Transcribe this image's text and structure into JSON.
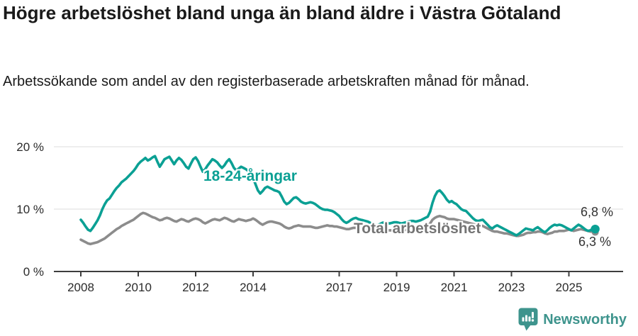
{
  "header": {
    "title": "Högre arbetslöshet bland unga än bland äldre i Västra Götaland",
    "subtitle": "Arbetssökande som andel av den registerbaserade arbetskraften månad för månad."
  },
  "chart_data": {
    "type": "line",
    "title": "Högre arbetslöshet bland unga än bland äldre i Västra Götaland",
    "subtitle": "Arbetssökande som andel av den registerbaserade arbetskraften månad för månad.",
    "unit": "%",
    "frequency": "monthly",
    "x_start_year": 2008,
    "x_start_month": 1,
    "x_end_year": 2025,
    "x_end_month": 12,
    "ylim": [
      0,
      22.5
    ],
    "grid": "horizontal-light",
    "legend_position": "inline-labels",
    "y_ticks": [
      {
        "value": 0,
        "label": "0 %"
      },
      {
        "value": 10,
        "label": "10 %"
      },
      {
        "value": 20,
        "label": "20 %"
      }
    ],
    "x_ticks": [
      {
        "year": 2008,
        "label": "2008"
      },
      {
        "year": 2010,
        "label": "2010"
      },
      {
        "year": 2012,
        "label": "2012"
      },
      {
        "year": 2014,
        "label": "2014"
      },
      {
        "year": 2017,
        "label": "2017"
      },
      {
        "year": 2019,
        "label": "2019"
      },
      {
        "year": 2021,
        "label": "2021"
      },
      {
        "year": 2023,
        "label": "2023"
      },
      {
        "year": 2025,
        "label": "2025"
      }
    ],
    "series": [
      {
        "name": "18-24-åringar",
        "color": "#0ba094",
        "end_label": "6,8 %",
        "end_value": 6.8,
        "values": [
          8.3,
          7.8,
          7.2,
          6.7,
          6.5,
          7.0,
          7.6,
          8.2,
          9.0,
          10.0,
          10.8,
          11.4,
          11.7,
          12.3,
          12.9,
          13.4,
          13.8,
          14.3,
          14.6,
          14.9,
          15.3,
          15.7,
          16.1,
          16.6,
          17.2,
          17.6,
          17.9,
          18.2,
          17.8,
          18.0,
          18.3,
          18.5,
          17.6,
          16.8,
          17.4,
          18.0,
          18.2,
          18.4,
          17.8,
          17.2,
          17.8,
          18.2,
          17.9,
          17.4,
          16.8,
          16.5,
          17.3,
          18.0,
          18.3,
          17.7,
          16.8,
          16.0,
          16.4,
          17.0,
          17.5,
          18.0,
          17.8,
          17.5,
          17.0,
          16.6,
          17.0,
          17.6,
          18.0,
          17.4,
          16.6,
          16.2,
          16.5,
          16.8,
          16.6,
          16.4,
          16.1,
          15.8,
          15.0,
          14.0,
          13.0,
          12.5,
          12.9,
          13.4,
          13.6,
          13.4,
          13.2,
          13.0,
          12.9,
          12.7,
          12.0,
          11.2,
          10.8,
          11.0,
          11.4,
          11.8,
          11.9,
          11.6,
          11.2,
          11.0,
          10.9,
          11.0,
          11.1,
          11.0,
          10.8,
          10.5,
          10.2,
          10.0,
          9.9,
          9.9,
          9.8,
          9.7,
          9.5,
          9.2,
          8.9,
          8.4,
          8.0,
          7.8,
          8.0,
          8.3,
          8.5,
          8.6,
          8.4,
          8.3,
          8.2,
          8.1,
          8.0,
          7.8,
          7.6,
          7.5,
          7.4,
          7.6,
          7.8,
          7.9,
          7.8,
          7.7,
          7.8,
          7.9,
          7.9,
          7.8,
          7.7,
          7.8,
          7.9,
          8.0,
          8.1,
          8.1,
          8.0,
          8.1,
          8.2,
          8.4,
          8.6,
          8.8,
          9.6,
          11.0,
          12.1,
          12.8,
          13.0,
          12.6,
          12.1,
          11.5,
          11.1,
          11.3,
          11.0,
          10.8,
          10.4,
          10.0,
          9.8,
          9.7,
          9.3,
          8.9,
          8.5,
          8.2,
          8.1,
          8.2,
          8.3,
          7.9,
          7.5,
          7.1,
          6.9,
          7.2,
          7.4,
          7.2,
          7.0,
          6.8,
          6.6,
          6.4,
          6.2,
          6.0,
          5.8,
          6.0,
          6.3,
          6.6,
          6.9,
          6.8,
          6.7,
          6.6,
          6.9,
          7.1,
          6.8,
          6.5,
          6.3,
          6.6,
          7.0,
          7.3,
          7.5,
          7.4,
          7.5,
          7.4,
          7.2,
          7.0,
          6.8,
          6.6,
          6.9,
          7.2,
          7.5,
          7.3,
          7.0,
          6.7,
          6.5,
          6.6,
          6.9,
          6.8
        ]
      },
      {
        "name": "Total arbetslöshet",
        "color": "#8c8c8c",
        "label_color": "#747474",
        "end_label": "6,3 %",
        "end_value": 6.3,
        "values": [
          5.1,
          4.9,
          4.7,
          4.5,
          4.4,
          4.5,
          4.6,
          4.7,
          4.9,
          5.1,
          5.3,
          5.6,
          5.9,
          6.2,
          6.5,
          6.8,
          7.0,
          7.3,
          7.5,
          7.7,
          7.9,
          8.1,
          8.3,
          8.6,
          8.9,
          9.2,
          9.4,
          9.3,
          9.1,
          8.9,
          8.7,
          8.6,
          8.4,
          8.2,
          8.3,
          8.5,
          8.6,
          8.5,
          8.3,
          8.1,
          8.0,
          8.2,
          8.4,
          8.3,
          8.1,
          8.0,
          8.2,
          8.4,
          8.5,
          8.4,
          8.2,
          7.9,
          7.7,
          7.9,
          8.1,
          8.3,
          8.4,
          8.3,
          8.2,
          8.4,
          8.6,
          8.5,
          8.3,
          8.1,
          8.0,
          8.2,
          8.4,
          8.3,
          8.2,
          8.1,
          8.2,
          8.3,
          8.5,
          8.3,
          8.0,
          7.7,
          7.5,
          7.7,
          7.9,
          8.0,
          8.0,
          7.9,
          7.8,
          7.7,
          7.5,
          7.2,
          7.0,
          6.9,
          7.0,
          7.2,
          7.3,
          7.4,
          7.3,
          7.2,
          7.2,
          7.2,
          7.2,
          7.1,
          7.0,
          7.0,
          7.1,
          7.2,
          7.3,
          7.4,
          7.3,
          7.3,
          7.2,
          7.2,
          7.1,
          7.0,
          6.9,
          6.8,
          6.8,
          6.9,
          7.0,
          7.0,
          6.9,
          6.9,
          6.8,
          6.8,
          6.8,
          6.7,
          6.6,
          6.5,
          6.5,
          6.6,
          6.7,
          6.7,
          6.6,
          6.6,
          6.6,
          6.7,
          6.7,
          6.7,
          6.6,
          6.6,
          6.7,
          6.8,
          6.9,
          6.9,
          6.9,
          7.0,
          7.0,
          7.1,
          7.2,
          7.3,
          7.7,
          8.3,
          8.6,
          8.8,
          8.9,
          8.8,
          8.7,
          8.5,
          8.4,
          8.4,
          8.4,
          8.3,
          8.2,
          8.1,
          8.0,
          7.9,
          7.8,
          7.7,
          7.6,
          7.5,
          7.4,
          7.4,
          7.3,
          7.1,
          6.9,
          6.7,
          6.5,
          6.4,
          6.4,
          6.3,
          6.2,
          6.1,
          6.1,
          6.0,
          5.9,
          5.8,
          5.7,
          5.7,
          5.8,
          5.9,
          6.1,
          6.2,
          6.2,
          6.3,
          6.3,
          6.4,
          6.4,
          6.3,
          6.1,
          6.0,
          6.1,
          6.2,
          6.4,
          6.4,
          6.5,
          6.5,
          6.5,
          6.6,
          6.7,
          6.6,
          6.5,
          6.6,
          6.7,
          6.8,
          6.7,
          6.6,
          6.5,
          6.4,
          6.4,
          6.3
        ]
      }
    ]
  },
  "footer": {
    "brand": "Newsworthy",
    "logo_icon": "newsworthy-pin-bar-chart-icon",
    "brand_color": "#3e948d"
  },
  "colors": {
    "accent_teal": "#0ba094",
    "series_gray": "#8c8c8c",
    "axis": "#3d3d3d",
    "gridline": "#dcdcdc",
    "text": "#1a1a1a"
  }
}
